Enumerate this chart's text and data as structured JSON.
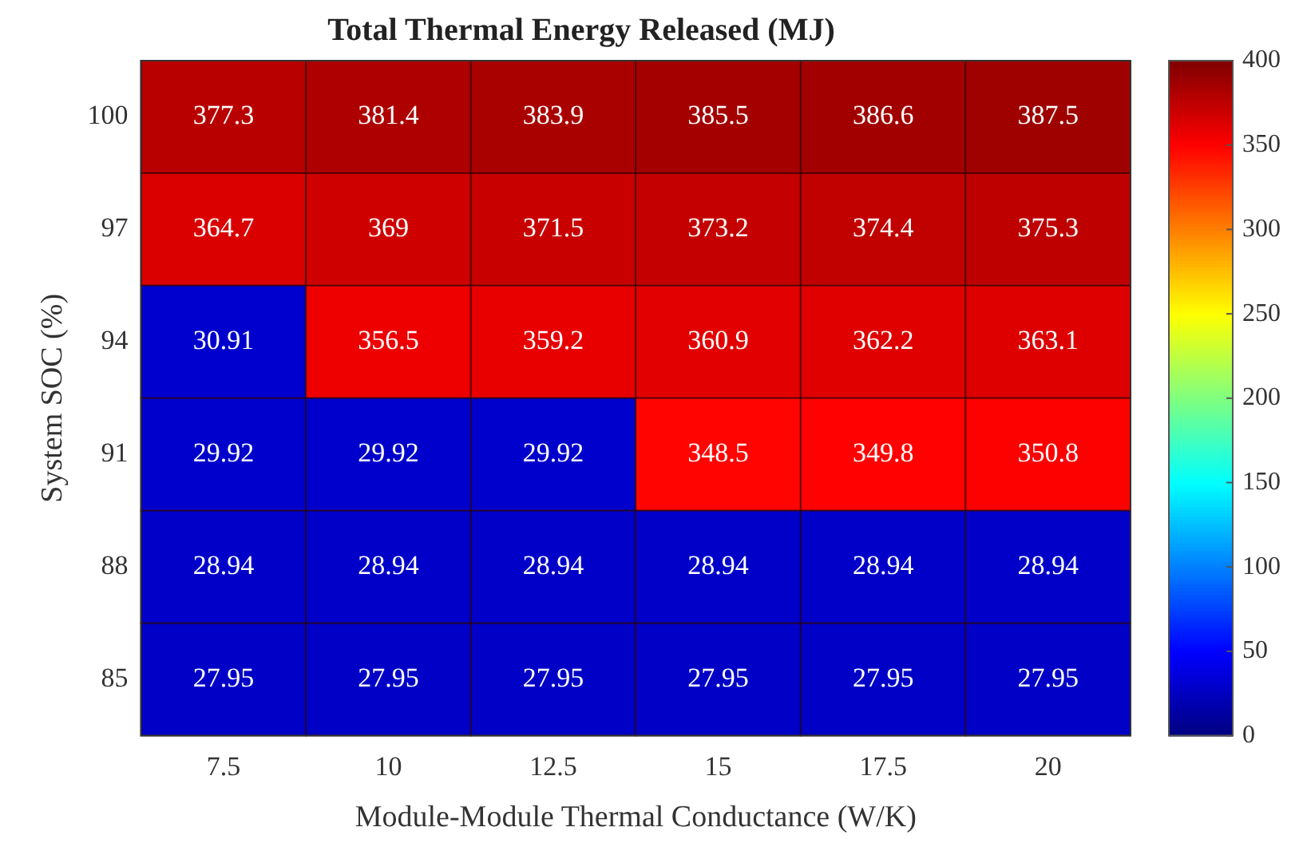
{
  "chart_data": {
    "type": "heatmap",
    "title": "Total Thermal Energy Released (MJ)",
    "xlabel": "Module-Module Thermal Conductance (W/K)",
    "ylabel": "System SOC (%)",
    "categories": [
      "7.5",
      "10",
      "12.5",
      "15",
      "17.5",
      "20"
    ],
    "y_categories": [
      "100",
      "97",
      "94",
      "91",
      "88",
      "85"
    ],
    "cells": [
      [
        377.3,
        381.4,
        383.9,
        385.5,
        386.6,
        387.5
      ],
      [
        364.7,
        369,
        371.5,
        373.2,
        374.4,
        375.3
      ],
      [
        30.91,
        356.5,
        359.2,
        360.9,
        362.2,
        363.1
      ],
      [
        29.92,
        29.92,
        29.92,
        348.5,
        349.8,
        350.8
      ],
      [
        28.94,
        28.94,
        28.94,
        28.94,
        28.94,
        28.94
      ],
      [
        27.95,
        27.95,
        27.95,
        27.95,
        27.95,
        27.95
      ]
    ],
    "clim": [
      0,
      400
    ],
    "cticks": [
      0,
      50,
      100,
      150,
      200,
      250,
      300,
      350,
      400
    ],
    "data_labels": true
  }
}
